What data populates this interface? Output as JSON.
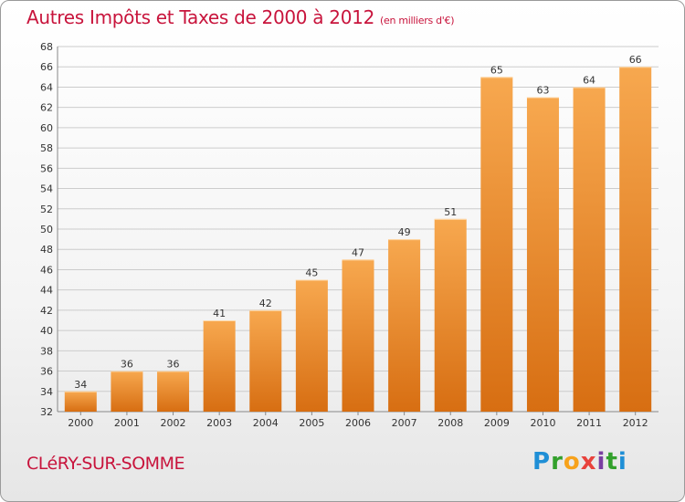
{
  "title": "Autres Impôts et Taxes de 2000 à 2012",
  "title_unit": "(en milliers d'€)",
  "commune": "CLéRY-SUR-SOMME",
  "brand": {
    "letters": [
      "P",
      "r",
      "o",
      "x",
      "i",
      "t",
      "i"
    ],
    "colors": [
      "#1f8fd6",
      "#33a02c",
      "#f7a21b",
      "#e8423c",
      "#7a3ea1",
      "#33a02c",
      "#1f8fd6"
    ]
  },
  "colors": {
    "title": "#c8143c",
    "bar_light": "#f7a84f",
    "bar_dark": "#d76e12",
    "grid": "#cccccc"
  },
  "chart_data": {
    "type": "bar",
    "categories": [
      "2000",
      "2001",
      "2002",
      "2003",
      "2004",
      "2005",
      "2006",
      "2007",
      "2008",
      "2009",
      "2010",
      "2011",
      "2012"
    ],
    "values": [
      34,
      36,
      36,
      41,
      42,
      45,
      47,
      49,
      51,
      65,
      63,
      64,
      66
    ],
    "ylim": [
      32,
      68
    ],
    "yticks": [
      32,
      34,
      36,
      38,
      40,
      42,
      44,
      46,
      48,
      50,
      52,
      54,
      56,
      58,
      60,
      62,
      64,
      66,
      68
    ],
    "grid": true,
    "legend": "none"
  }
}
